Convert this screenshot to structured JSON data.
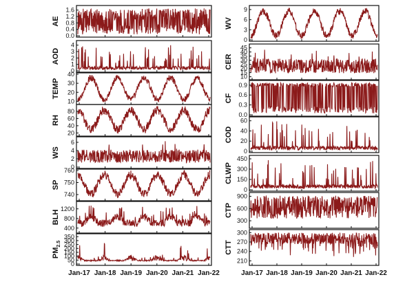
{
  "chart_data": [
    {
      "type": "line",
      "ylabel": "AE",
      "yticks": [
        "0.0",
        "0.4",
        "0.8",
        "1.2",
        "1.6"
      ],
      "ylim": [
        0,
        1.8
      ],
      "pattern": "bursty",
      "color": "#8b1a1a"
    },
    {
      "type": "line",
      "ylabel": "AOD",
      "yticks": [
        "0",
        "1",
        "2",
        "3",
        "4"
      ],
      "ylim": [
        0,
        4.5
      ],
      "pattern": "spiky",
      "color": "#8b1a1a"
    },
    {
      "type": "line",
      "ylabel": "TEMP",
      "yticks": [
        "10",
        "20",
        "30",
        "40"
      ],
      "ylim": [
        8,
        40
      ],
      "pattern": "seasonal",
      "color": "#8b1a1a"
    },
    {
      "type": "line",
      "ylabel": "RH",
      "yticks": [
        "20",
        "40",
        "60",
        "80"
      ],
      "ylim": [
        15,
        95
      ],
      "pattern": "seasonal-inverse",
      "color": "#8b1a1a"
    },
    {
      "type": "line",
      "ylabel": "WS",
      "yticks": [
        "0",
        "2",
        "4",
        "6"
      ],
      "ylim": [
        0,
        7
      ],
      "pattern": "noisy",
      "color": "#8b1a1a"
    },
    {
      "type": "line",
      "ylabel": "SP",
      "yticks": [
        "740",
        "750",
        "760"
      ],
      "ylim": [
        736,
        760
      ],
      "pattern": "seasonal-inverse",
      "color": "#8b1a1a"
    },
    {
      "type": "line",
      "ylabel": "BLH",
      "yticks": [
        "400",
        "800",
        "1200"
      ],
      "ylim": [
        250,
        1450
      ],
      "pattern": "seasonal-peaky",
      "color": "#8b1a1a"
    },
    {
      "type": "line",
      "ylabel": "PM",
      "ylabel_sub": "2.5",
      "yticks": [
        "0",
        "50",
        "100",
        "150",
        "200",
        "250",
        "300",
        "350"
      ],
      "ylim": [
        0,
        370
      ],
      "pattern": "winter-spiky",
      "color": "#8b1a1a"
    },
    {
      "type": "line",
      "ylabel": "WV",
      "yticks": [
        "0",
        "3",
        "6",
        "9"
      ],
      "ylim": [
        0,
        9.8
      ],
      "pattern": "seasonal",
      "color": "#8b1a1a"
    },
    {
      "type": "line",
      "ylabel": "CER",
      "yticks": [
        "10",
        "15",
        "20",
        "25",
        "30",
        "35",
        "40",
        "45"
      ],
      "ylim": [
        8,
        48
      ],
      "pattern": "noisy",
      "color": "#8b1a1a"
    },
    {
      "type": "line",
      "ylabel": "CF",
      "yticks": [
        "0.0",
        "0.3",
        "0.6",
        "0.9"
      ],
      "ylim": [
        0,
        1
      ],
      "pattern": "binary",
      "color": "#8b1a1a"
    },
    {
      "type": "line",
      "ylabel": "COD",
      "yticks": [
        "0",
        "20",
        "40",
        "60"
      ],
      "ylim": [
        0,
        65
      ],
      "pattern": "spiky",
      "color": "#8b1a1a"
    },
    {
      "type": "line",
      "ylabel": "CLWP",
      "yticks": [
        "0",
        "150",
        "300",
        "450"
      ],
      "ylim": [
        0,
        480
      ],
      "pattern": "spiky",
      "color": "#8b1a1a"
    },
    {
      "type": "line",
      "ylabel": "CTP",
      "yticks": [
        "300",
        "600",
        "900"
      ],
      "ylim": [
        150,
        960
      ],
      "pattern": "dense",
      "color": "#8b1a1a"
    },
    {
      "type": "line",
      "ylabel": "CTT",
      "yticks": [
        "210",
        "240",
        "270",
        "300"
      ],
      "ylim": [
        200,
        305
      ],
      "pattern": "dense-top",
      "color": "#8b1a1a"
    }
  ],
  "x_tick_labels": [
    "Jan-17",
    "Jan-18",
    "Jan-19",
    "Jan-20",
    "Jan-21",
    "Jan-22"
  ]
}
